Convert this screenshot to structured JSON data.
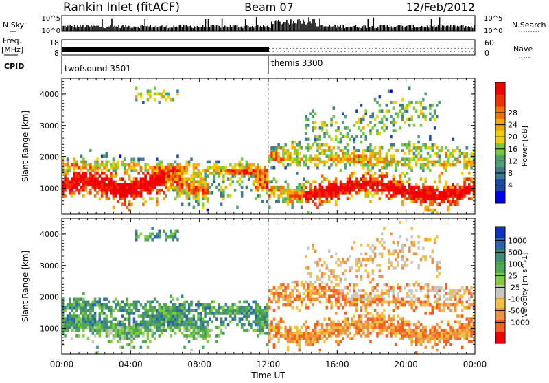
{
  "header": {
    "station": "Rankin Inlet (fitACF)",
    "beam": "Beam 07",
    "date": "12/Feb/2012"
  },
  "status_panel": {
    "nsky_label": "N.Sky",
    "nsearch_label": "N.Search",
    "count_ticks": [
      "10^5",
      "10^0"
    ],
    "freq_label": "Freq.",
    "freq_unit": "[MHz]",
    "freq_ticks": [
      "18",
      "8"
    ],
    "nave_label": "Nave",
    "nave_ticks": [
      "60",
      "0"
    ],
    "cpid_label": "CPID",
    "programs": [
      {
        "name": "twofsound 3501",
        "start_hour": 0
      },
      {
        "name": "themis 3300",
        "start_hour": 12
      }
    ]
  },
  "chart_data": [
    {
      "type": "heatmap",
      "title": "Power",
      "ylabel": "Slant Range [km]",
      "xlabel": "",
      "xlim": [
        0,
        24
      ],
      "ylim": [
        180,
        4500
      ],
      "yticks": [
        1000,
        2000,
        3000,
        4000
      ],
      "colorbar": {
        "label": "Power [dB]",
        "ticks": [
          "4",
          "8",
          "12",
          "16",
          "20",
          "24",
          "28"
        ],
        "colors": [
          "#0000f0",
          "#1c46a8",
          "#3c7a8c",
          "#4fa070",
          "#78c840",
          "#f0d000",
          "#f0a800",
          "#f07000",
          "#f03000",
          "#f00000"
        ]
      }
    },
    {
      "type": "heatmap",
      "title": "Velocity",
      "ylabel": "Slant Range [km]",
      "xlabel": "Time UT",
      "xlim": [
        0,
        24
      ],
      "ylim": [
        180,
        4500
      ],
      "yticks": [
        1000,
        2000,
        3000,
        4000
      ],
      "xticks": [
        "00:00",
        "04:00",
        "08:00",
        "12:00",
        "16:00",
        "20:00",
        "00:00"
      ],
      "colorbar": {
        "label": "Velocity [m s^-1]",
        "ticks": [
          "1000",
          "500",
          "100",
          "25",
          "-25",
          "-100",
          "-500",
          "-1000"
        ],
        "colors": [
          "#1030c0",
          "#2c64b4",
          "#3c8c78",
          "#50a84c",
          "#80cc40",
          "#c8c8c0",
          "#f0c040",
          "#f09040",
          "#f06020",
          "#f00000"
        ]
      }
    }
  ]
}
